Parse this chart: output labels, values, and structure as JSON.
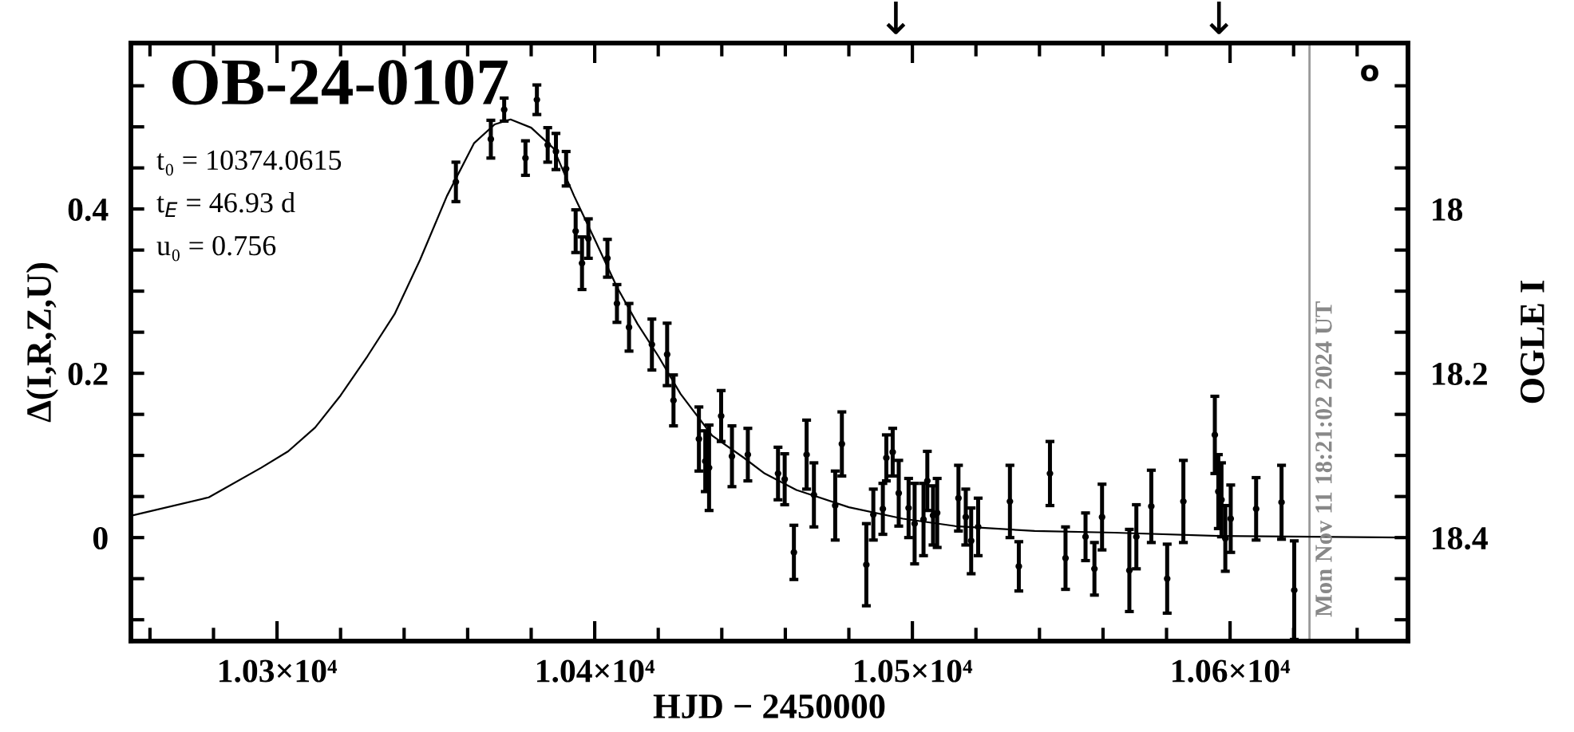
{
  "chart_data": {
    "type": "scatter",
    "title": "OB-24-0107",
    "xlabel": "HJD − 2450000",
    "ylabel": "Δ(I,R,Z,U)",
    "y2label": "OGLE I",
    "xlim": [
      10254,
      10656
    ],
    "ylim": [
      -0.126,
      0.602
    ],
    "y2lim": [
      18.526,
      17.798
    ],
    "xticks": [
      {
        "value": 10260,
        "label": null
      },
      {
        "value": 10280,
        "label": null
      },
      {
        "value": 10300,
        "label": "1.03×10⁴"
      },
      {
        "value": 10320,
        "label": null
      },
      {
        "value": 10340,
        "label": null
      },
      {
        "value": 10360,
        "label": null
      },
      {
        "value": 10380,
        "label": null
      },
      {
        "value": 10400,
        "label": "1.04×10⁴"
      },
      {
        "value": 10420,
        "label": null
      },
      {
        "value": 10440,
        "label": null
      },
      {
        "value": 10460,
        "label": null
      },
      {
        "value": 10480,
        "label": null
      },
      {
        "value": 10500,
        "label": "1.05×10⁴"
      },
      {
        "value": 10520,
        "label": null
      },
      {
        "value": 10540,
        "label": null
      },
      {
        "value": 10560,
        "label": null
      },
      {
        "value": 10580,
        "label": null
      },
      {
        "value": 10600,
        "label": "1.06×10⁴"
      },
      {
        "value": 10620,
        "label": null
      },
      {
        "value": 10640,
        "label": null
      }
    ],
    "yticks": [
      {
        "value": -0.1,
        "label": null
      },
      {
        "value": -0.05,
        "label": null
      },
      0,
      {
        "value": 0.05,
        "label": null
      },
      {
        "value": 0.1,
        "label": null
      },
      {
        "value": 0.15,
        "label": null
      },
      0.2,
      {
        "value": 0.25,
        "label": null
      },
      {
        "value": 0.3,
        "label": null
      },
      {
        "value": 0.35,
        "label": null
      },
      0.4,
      {
        "value": 0.45,
        "label": null
      },
      {
        "value": 0.5,
        "label": null
      },
      {
        "value": 0.55,
        "label": null
      }
    ],
    "y2ticks": [
      {
        "value": 17.85,
        "label": null
      },
      {
        "value": 17.9,
        "label": null
      },
      {
        "value": 17.95,
        "label": null
      },
      18,
      {
        "value": 18.05,
        "label": null
      },
      {
        "value": 18.1,
        "label": null
      },
      {
        "value": 18.15,
        "label": null
      },
      18.2,
      {
        "value": 18.25,
        "label": null
      },
      {
        "value": 18.3,
        "label": null
      },
      {
        "value": 18.35,
        "label": null
      },
      18.4,
      {
        "value": 18.45,
        "label": null
      },
      {
        "value": 18.5,
        "label": null
      }
    ],
    "grid": false,
    "ref_lines": [
      {
        "axis": "x",
        "value": 10625,
        "color": "#999999"
      }
    ],
    "annotations": [
      "t₀ = 10374.0615",
      "t$_{E}$ = 46.93 d",
      "u₀ = 0.756",
      "↓",
      "↓",
      "o",
      "Mon Nov 11 18:21:02 2024 UT"
    ],
    "series": [
      {
        "type": "line",
        "color": "#000000",
        "marker": "none",
        "x": [
          10254.5,
          10278.5,
          10295,
          10303.5,
          10312,
          10320,
          10328.5,
          10337,
          10345,
          10353.5,
          10362,
          10368.5,
          10373.5,
          10380,
          10387,
          10393.5,
          10400,
          10407,
          10413.5,
          10420,
          10427,
          10437,
          10447,
          10453.5,
          10463.5,
          10480,
          10497,
          10513.5,
          10538.5,
          10563.5,
          10597,
          10654.5
        ],
        "values": [
          0.027,
          0.049,
          0.085,
          0.105,
          0.134,
          0.173,
          0.221,
          0.272,
          0.338,
          0.416,
          0.48,
          0.503,
          0.509,
          0.499,
          0.474,
          0.416,
          0.363,
          0.305,
          0.26,
          0.221,
          0.175,
          0.124,
          0.097,
          0.078,
          0.058,
          0.037,
          0.023,
          0.014,
          0.008,
          0.006,
          0.002,
          0.0
        ]
      },
      {
        "color": "#000000",
        "marker": "circle",
        "x": [
          10356.3,
          10367.3,
          10371.5,
          10381.8,
          10378.2,
          10385.2,
          10387.8,
          10391,
          10394,
          10396,
          10398,
          10404,
          10407,
          10410.8,
          10418,
          10422.8,
          10424.8,
          10432.8,
          10434.8,
          10436,
          10439.8,
          10443.2,
          10448.2,
          10457.7,
          10459.8,
          10462.7,
          10466.7,
          10469,
          10475.7,
          10477.8,
          10485.5,
          10487.7,
          10490.7,
          10491.8,
          10493.8,
          10495.7,
          10498.8,
          10500.7,
          10503.5,
          10504.7,
          10506.5,
          10507.8,
          10514.5,
          10516.8,
          10518.5,
          10520.7,
          10530.7,
          10533.5,
          10543.3,
          10548.2,
          10554.5,
          10557.3,
          10559.7,
          10568.3,
          10570.5,
          10575.2,
          10580.2,
          10585.3,
          10595.2,
          10596.3,
          10597.3,
          10598.5,
          10600.2,
          10608.2,
          10616.2,
          10620.2
        ],
        "values": [
          0.433,
          0.485,
          0.521,
          0.533,
          0.462,
          0.478,
          0.47,
          0.449,
          0.373,
          0.334,
          0.364,
          0.34,
          0.285,
          0.256,
          0.235,
          0.223,
          0.167,
          0.12,
          0.093,
          0.085,
          0.148,
          0.099,
          0.101,
          0.078,
          0.071,
          -0.018,
          0.101,
          0.052,
          0.039,
          0.114,
          -0.033,
          0.028,
          0.035,
          0.097,
          0.104,
          0.054,
          0.036,
          0.017,
          0.022,
          0.069,
          0.027,
          0.03,
          0.048,
          0.025,
          -0.004,
          0.013,
          0.044,
          -0.035,
          0.078,
          -0.025,
          0.001,
          -0.038,
          0.025,
          -0.04,
          0.001,
          0.038,
          -0.05,
          0.044,
          0.125,
          0.056,
          0.046,
          -0.001,
          0.023,
          0.035,
          0.043,
          -0.064
        ],
        "errors": [
          0.024,
          0.023,
          0.014,
          0.018,
          0.021,
          0.021,
          0.022,
          0.021,
          0.026,
          0.032,
          0.024,
          0.023,
          0.023,
          0.029,
          0.031,
          0.038,
          0.031,
          0.039,
          0.037,
          0.052,
          0.031,
          0.037,
          0.032,
          0.032,
          0.031,
          0.033,
          0.042,
          0.039,
          0.042,
          0.039,
          0.05,
          0.031,
          0.031,
          0.028,
          0.029,
          0.04,
          0.036,
          0.049,
          0.044,
          0.036,
          0.036,
          0.042,
          0.04,
          0.034,
          0.04,
          0.035,
          0.044,
          0.03,
          0.039,
          0.038,
          0.029,
          0.032,
          0.04,
          0.05,
          0.039,
          0.044,
          0.042,
          0.05,
          0.047,
          0.045,
          0.045,
          0.04,
          0.041,
          0.038,
          0.045,
          0.06
        ]
      }
    ]
  }
}
